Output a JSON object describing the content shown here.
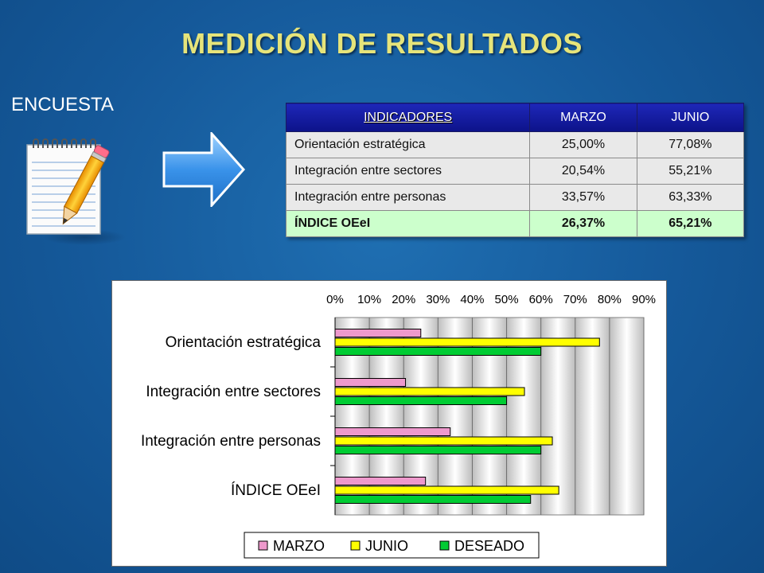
{
  "title": "MEDICIÓN DE RESULTADOS",
  "survey_label": "ENCUESTA",
  "icons": {
    "survey": "notepad-pencil-icon",
    "arrow": "right-arrow-icon"
  },
  "table": {
    "headers": [
      "INDICADORES",
      "MARZO",
      "JUNIO"
    ],
    "rows": [
      [
        "Orientación estratégica",
        "25,00%",
        "77,08%"
      ],
      [
        "Integración entre sectores",
        "20,54%",
        "55,21%"
      ],
      [
        "Integración entre personas",
        "33,57%",
        "63,33%"
      ],
      [
        "ÍNDICE OEeI",
        "26,37%",
        "65,21%"
      ]
    ],
    "colors": {
      "header_bg": "#0c1289",
      "row_bg": "#e9e9e9",
      "total_bg": "#ccffcc"
    }
  },
  "chart_data": {
    "type": "bar",
    "orientation": "horizontal",
    "categories": [
      "Orientación estratégica",
      "Integración entre sectores",
      "Integración entre personas",
      "ÍNDICE OEeI"
    ],
    "series": [
      {
        "name": "MARZO",
        "values": [
          25.0,
          20.54,
          33.57,
          26.37
        ],
        "color": "#ee99cc"
      },
      {
        "name": "JUNIO",
        "values": [
          77.08,
          55.21,
          63.33,
          65.21
        ],
        "color": "#ffff00"
      },
      {
        "name": "DESEADO",
        "values": [
          60,
          50,
          60,
          57
        ],
        "color": "#00cc33"
      }
    ],
    "xlim": [
      0,
      90
    ],
    "x_ticks": [
      "0%",
      "10%",
      "20%",
      "30%",
      "40%",
      "50%",
      "60%",
      "70%",
      "80%",
      "90%"
    ],
    "x_axis_position": "top",
    "grid": true,
    "legend_position": "bottom"
  }
}
